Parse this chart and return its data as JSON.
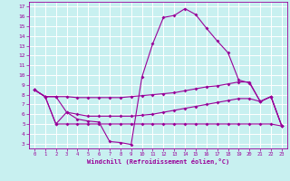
{
  "bg_color": "#c8f0f0",
  "line_color": "#990099",
  "grid_color": "#ffffff",
  "xlabel": "Windchill (Refroidissement éolien,°C)",
  "xlim": [
    -0.5,
    23.5
  ],
  "ylim": [
    2.5,
    17.5
  ],
  "yticks": [
    3,
    4,
    5,
    6,
    7,
    8,
    9,
    10,
    11,
    12,
    13,
    14,
    15,
    16,
    17
  ],
  "xticks": [
    0,
    1,
    2,
    3,
    4,
    5,
    6,
    7,
    8,
    9,
    10,
    11,
    12,
    13,
    14,
    15,
    16,
    17,
    18,
    19,
    20,
    21,
    22,
    23
  ],
  "lines": [
    {
      "x": [
        0,
        1,
        2,
        3,
        4,
        5,
        6,
        7,
        8,
        9,
        10,
        11,
        12,
        13,
        14,
        15,
        16,
        17,
        18,
        19,
        20,
        21,
        22,
        23
      ],
      "y": [
        8.5,
        7.8,
        5.0,
        6.2,
        5.5,
        5.3,
        5.2,
        3.2,
        3.1,
        2.9,
        9.8,
        13.2,
        15.9,
        16.1,
        16.8,
        16.2,
        14.8,
        13.5,
        12.3,
        9.5,
        9.2,
        7.3,
        7.8,
        4.8
      ]
    },
    {
      "x": [
        0,
        1,
        2,
        3,
        4,
        5,
        6,
        7,
        8,
        9,
        10,
        11,
        12,
        13,
        14,
        15,
        16,
        17,
        18,
        19,
        20,
        21,
        22,
        23
      ],
      "y": [
        8.5,
        7.8,
        7.8,
        7.8,
        7.7,
        7.7,
        7.7,
        7.7,
        7.7,
        7.8,
        7.9,
        8.0,
        8.1,
        8.2,
        8.4,
        8.6,
        8.8,
        8.9,
        9.1,
        9.3,
        9.3,
        7.3,
        7.8,
        4.8
      ]
    },
    {
      "x": [
        0,
        1,
        2,
        3,
        4,
        5,
        6,
        7,
        8,
        9,
        10,
        11,
        12,
        13,
        14,
        15,
        16,
        17,
        18,
        19,
        20,
        21,
        22,
        23
      ],
      "y": [
        8.5,
        7.8,
        7.8,
        6.2,
        6.0,
        5.8,
        5.8,
        5.8,
        5.8,
        5.8,
        5.9,
        6.0,
        6.2,
        6.4,
        6.6,
        6.8,
        7.0,
        7.2,
        7.4,
        7.6,
        7.6,
        7.3,
        7.8,
        4.8
      ]
    },
    {
      "x": [
        0,
        1,
        2,
        3,
        4,
        5,
        6,
        7,
        8,
        9,
        10,
        11,
        12,
        13,
        14,
        15,
        16,
        17,
        18,
        19,
        20,
        21,
        22,
        23
      ],
      "y": [
        8.5,
        7.8,
        5.0,
        5.0,
        5.0,
        5.0,
        5.0,
        5.0,
        5.0,
        5.0,
        5.0,
        5.0,
        5.0,
        5.0,
        5.0,
        5.0,
        5.0,
        5.0,
        5.0,
        5.0,
        5.0,
        5.0,
        5.0,
        4.8
      ]
    }
  ]
}
